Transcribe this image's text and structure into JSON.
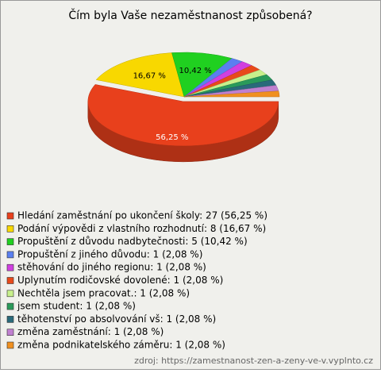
{
  "chart_data": {
    "type": "pie3d",
    "title": "Čím byla Vaše nezaměstnanost způsobená?",
    "categories": [
      "Hledání zaměstnání po ukončení školy: 27 (56,25 %)",
      "Podání výpovědi z vlastního rozhodnutí: 8 (16,67 %)",
      "Propuštění z důvodu nadbytečnosti: 5 (10,42 %)",
      "Propuštění z jiného důvodu: 1 (2,08 %)",
      "stěhování do jiného regionu: 1 (2,08 %)",
      "Uplynutím rodičovské dovolené: 1 (2,08 %)",
      "Nechtěla jsem pracovat.: 1 (2,08 %)",
      "jsem student: 1 (2,08 %)",
      "těhotenství po absolvování vš: 1 (2,08 %)",
      "změna zaměstnání: 1 (2,08 %)",
      "změna podnikatelského záměru: 1 (2,08 %)"
    ],
    "values": [
      56.25,
      16.67,
      10.42,
      2.08,
      2.08,
      2.08,
      2.08,
      2.08,
      2.08,
      2.08,
      2.08
    ],
    "value_labels": [
      "56,25 %",
      "16,67 %",
      "10,42 %",
      null,
      null,
      null,
      null,
      null,
      null,
      null,
      null
    ],
    "colors": [
      "#e8401c",
      "#f8d800",
      "#20d020",
      "#5a7ff0",
      "#d040e0",
      "#e84a1a",
      "#c8f08c",
      "#2a9a5a",
      "#2a6a7a",
      "#c080d0",
      "#f09020"
    ],
    "legend": "bottom",
    "source": "zdroj: https://zamestnanost-zen-a-zeny-ve-v.vyplnto.cz"
  }
}
